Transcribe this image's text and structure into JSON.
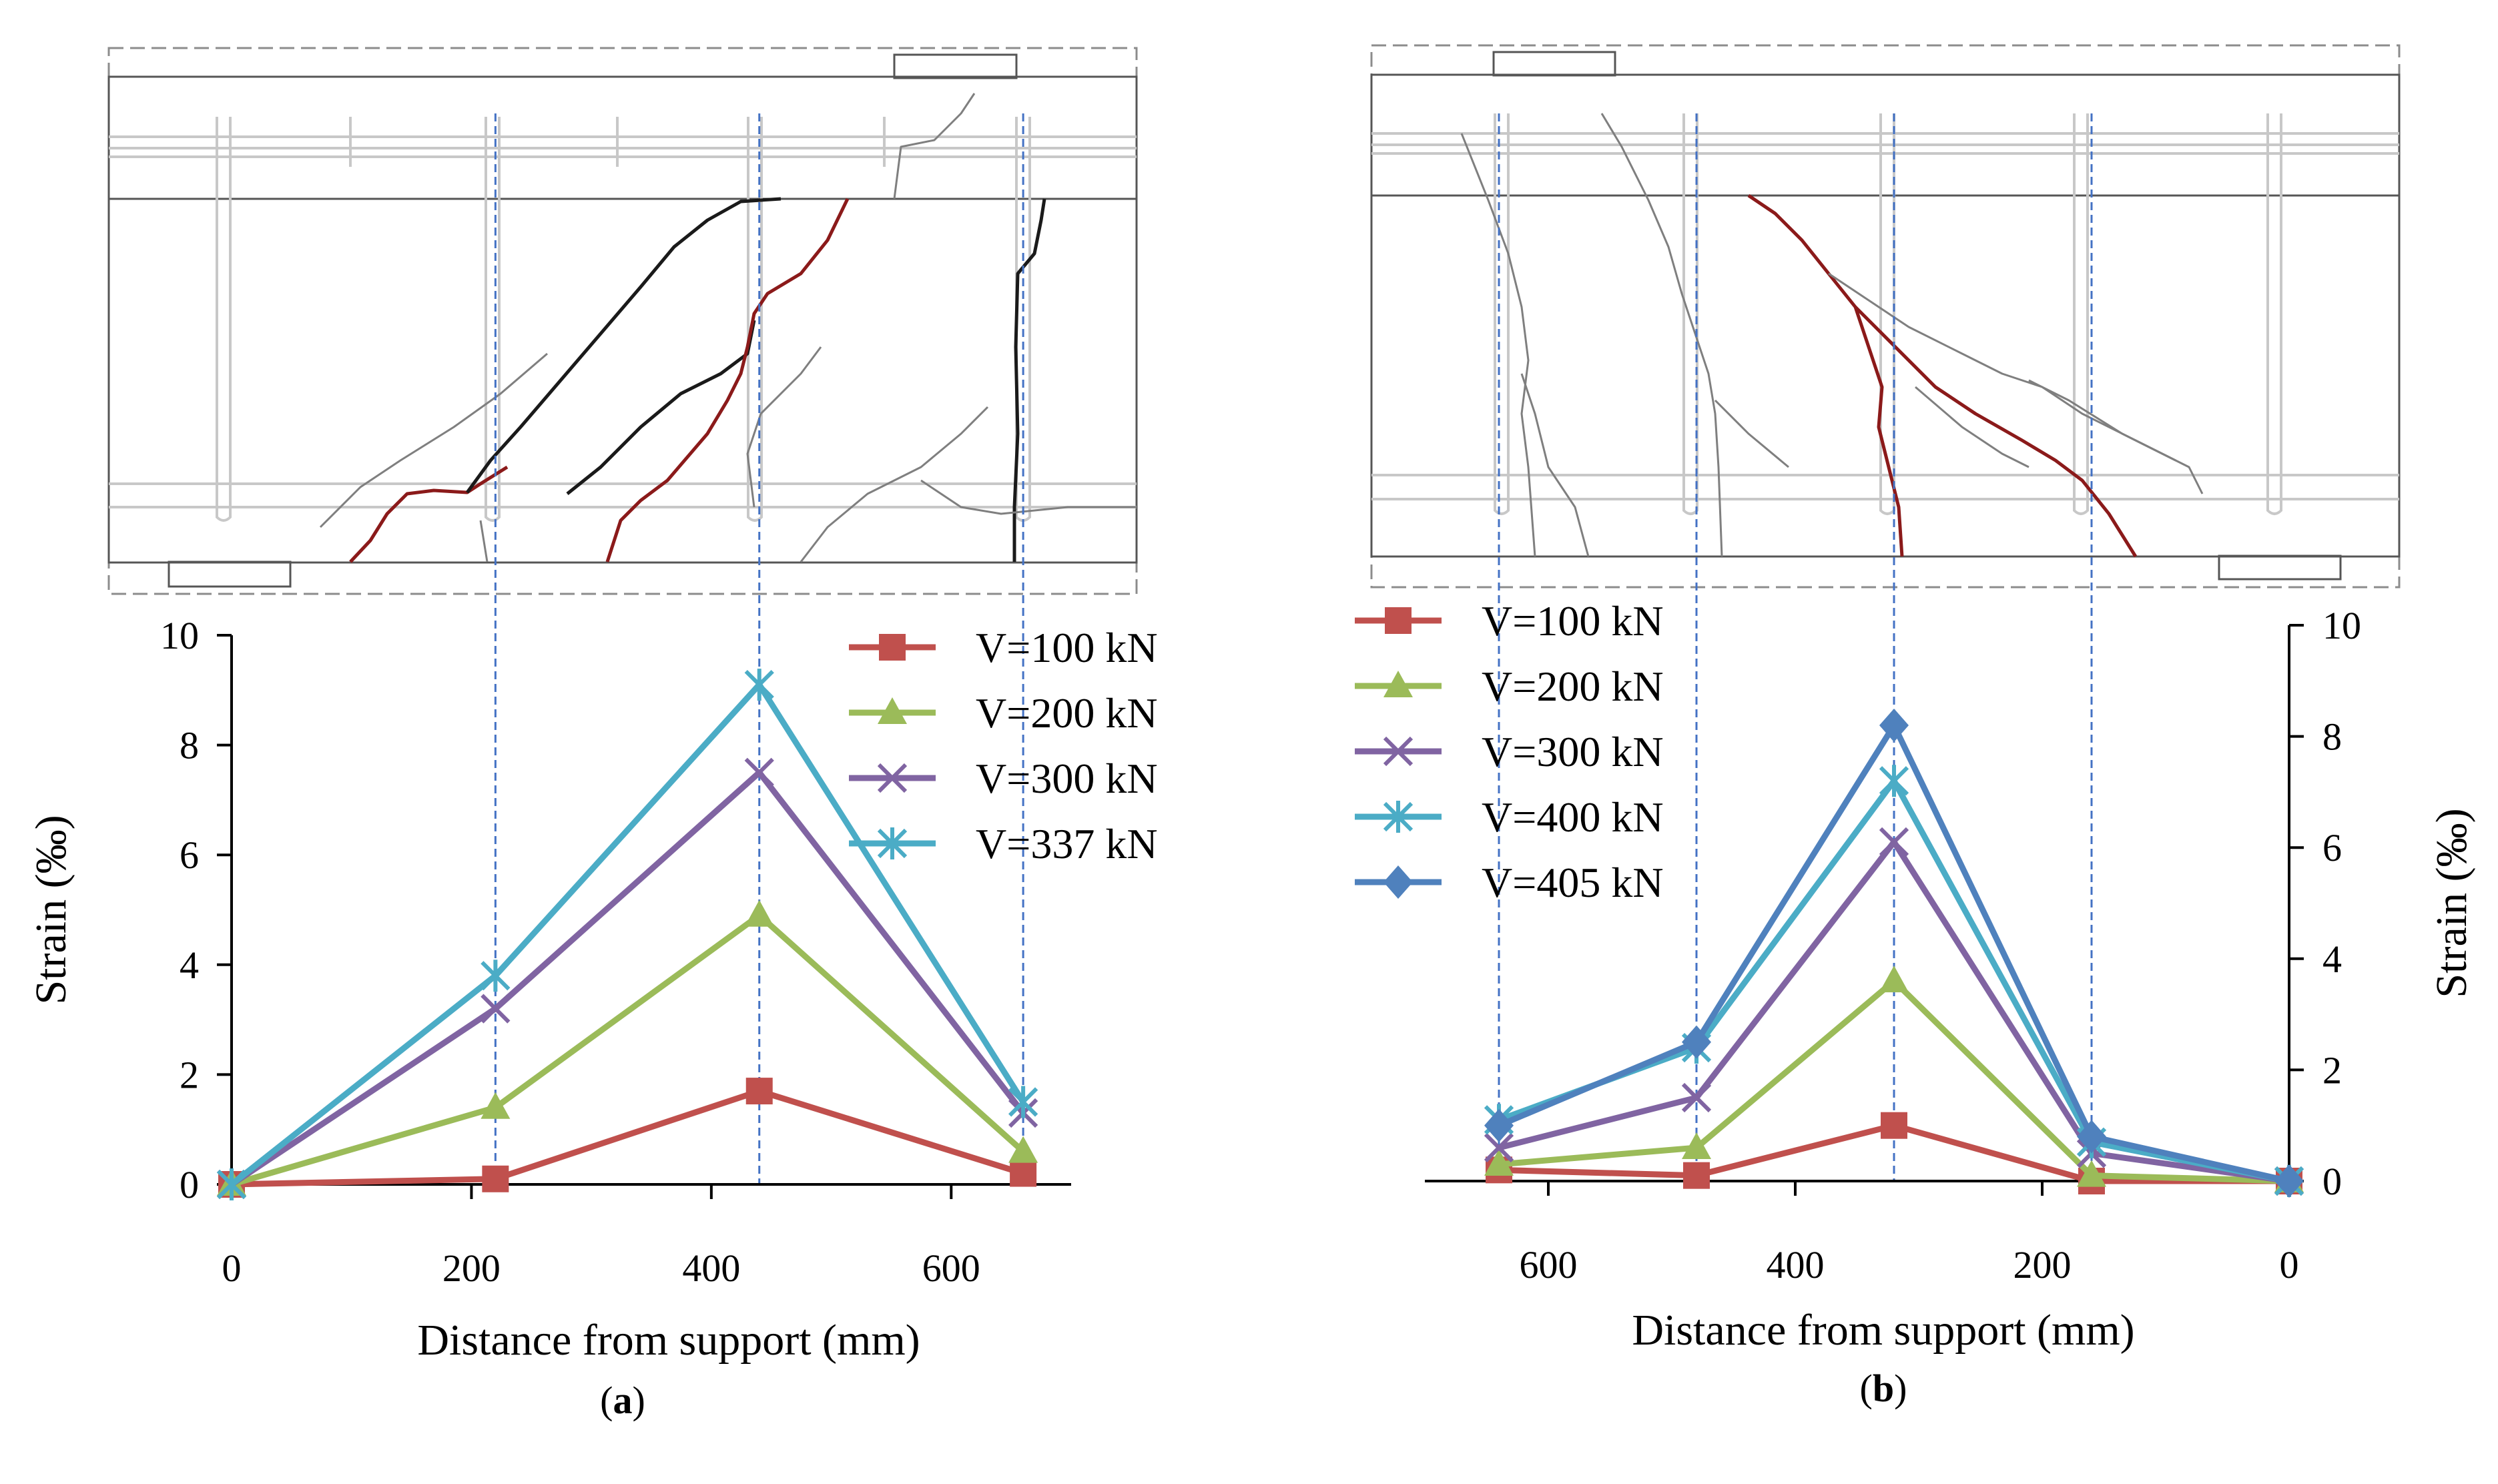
{
  "colors": {
    "s100": "#C0504D",
    "s200": "#9BBB59",
    "s300": "#8064A2",
    "s400": "#4BACC6",
    "s405": "#4F81BD",
    "guide": "#4472C4",
    "crack_major": "#8B1A1A",
    "crack_dark": "#1a1a1a",
    "crack_thin": "#7f7f7f",
    "rebar": "#c8c8c8",
    "outline": "#8c8c8c"
  },
  "panels": [
    {
      "caption_prefix": "(",
      "caption_letter": "a",
      "caption_suffix": ")"
    },
    {
      "caption_prefix": "(",
      "caption_letter": "b",
      "caption_suffix": ")"
    }
  ],
  "chart_data": [
    {
      "type": "line",
      "xlabel": "Distance from support (mm)",
      "ylabel": "Strain (‰)",
      "x": [
        0,
        220,
        440,
        660
      ],
      "xlim": [
        0,
        700
      ],
      "ylim": [
        0,
        10
      ],
      "xticks": [
        "0",
        "200",
        "400",
        "600"
      ],
      "yticks": [
        "0",
        "2",
        "4",
        "6",
        "8",
        "10"
      ],
      "x_reversed": false,
      "y_axis_side": "left",
      "legend_position": "top-right",
      "grid": false,
      "series": [
        {
          "name": "V=100 kN",
          "marker": "square",
          "color_key": "s100",
          "values": [
            0,
            0.1,
            1.7,
            0.2
          ]
        },
        {
          "name": "V=200 kN",
          "marker": "triangle",
          "color_key": "s200",
          "values": [
            0,
            1.4,
            4.9,
            0.6
          ]
        },
        {
          "name": "V=300 kN",
          "marker": "x",
          "color_key": "s300",
          "values": [
            0,
            3.2,
            7.5,
            1.3
          ]
        },
        {
          "name": "V=337 kN",
          "marker": "star",
          "color_key": "s400",
          "values": [
            0,
            3.8,
            9.1,
            1.5
          ]
        }
      ]
    },
    {
      "type": "line",
      "xlabel": "Distance from support (mm)",
      "ylabel": "Strain (‰)",
      "x": [
        640,
        480,
        320,
        160,
        0
      ],
      "xlim": [
        700,
        0
      ],
      "ylim": [
        0,
        10
      ],
      "xticks": [
        "600",
        "400",
        "200",
        "0"
      ],
      "yticks": [
        "0",
        "2",
        "4",
        "6",
        "8",
        "10"
      ],
      "x_reversed": true,
      "y_axis_side": "right",
      "legend_position": "top-left",
      "grid": false,
      "series": [
        {
          "name": "V=100 kN",
          "marker": "square",
          "color_key": "s100",
          "values": [
            0.2,
            0.1,
            1.0,
            0,
            0
          ]
        },
        {
          "name": "V=200 kN",
          "marker": "triangle",
          "color_key": "s200",
          "values": [
            0.3,
            0.6,
            3.6,
            0.1,
            0
          ]
        },
        {
          "name": "V=300 kN",
          "marker": "x",
          "color_key": "s300",
          "values": [
            0.6,
            1.5,
            6.1,
            0.5,
            0
          ]
        },
        {
          "name": "V=400 kN",
          "marker": "star",
          "color_key": "s400",
          "values": [
            1.1,
            2.4,
            7.2,
            0.7,
            0
          ]
        },
        {
          "name": "V=405 kN",
          "marker": "diamond",
          "color_key": "s405",
          "values": [
            1.0,
            2.5,
            8.2,
            0.8,
            0
          ]
        }
      ]
    }
  ]
}
